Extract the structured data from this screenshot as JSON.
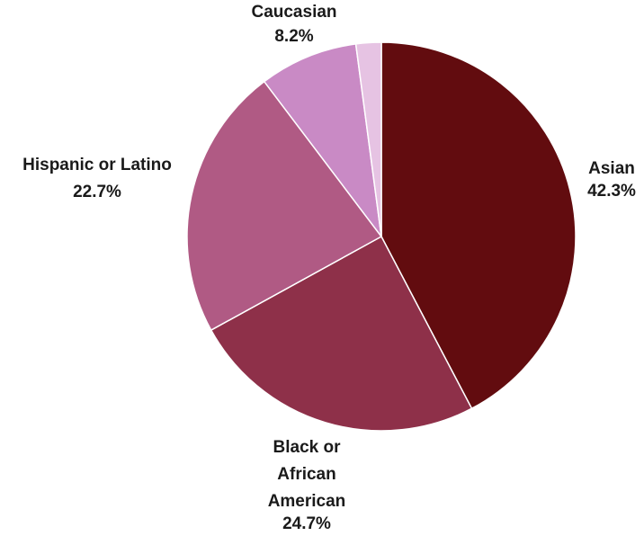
{
  "chart_data": {
    "type": "pie",
    "title": "",
    "slices": [
      {
        "label": "Asian",
        "label_lines": [
          "Asian"
        ],
        "value_label": "42.3%",
        "value": 42.3,
        "color": "#620c0f"
      },
      {
        "label": "Black or African American",
        "label_lines": [
          "Black or",
          "African",
          "American"
        ],
        "value_label": "24.7%",
        "value": 24.7,
        "color": "#8e3049"
      },
      {
        "label": "Hispanic or Latino",
        "label_lines": [
          "Hispanic or Latino"
        ],
        "value_label": "22.7%",
        "value": 22.7,
        "color": "#b05a84"
      },
      {
        "label": "Caucasian",
        "label_lines": [
          "Caucasian"
        ],
        "value_label": "8.2%",
        "value": 8.2,
        "color": "#c98ac5"
      },
      {
        "label": "",
        "label_lines": [],
        "value_label": "",
        "value": 2.1,
        "color": "#e6c3e3"
      }
    ],
    "legend": "none"
  }
}
